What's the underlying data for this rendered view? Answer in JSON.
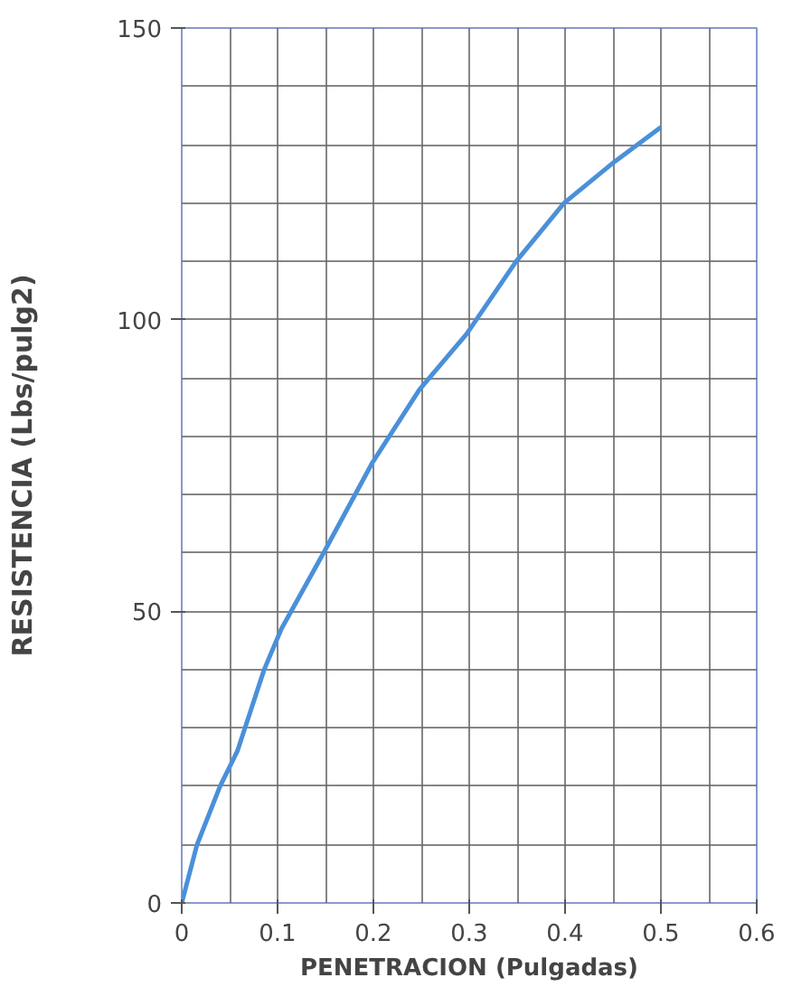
{
  "chart_data": {
    "type": "line",
    "xlabel": "PENETRACION (Pulgadas)",
    "ylabel": "RESISTENCIA (Lbs/pulg2)",
    "xlim": [
      0,
      0.6
    ],
    "ylim": [
      0,
      150
    ],
    "xticks": [
      0,
      0.1,
      0.2,
      0.3,
      0.4,
      0.5,
      0.6
    ],
    "yticks": [
      0,
      50,
      100,
      150
    ],
    "grid": true,
    "marker": "none",
    "line_style": "solid",
    "series": [
      {
        "color": "#4a90d9",
        "x": [
          0,
          0.016,
          0.04,
          0.058,
          0.086,
          0.104,
          0.148,
          0.199,
          0.248,
          0.297,
          0.349,
          0.399,
          0.451,
          0.5
        ],
        "values": [
          0,
          10,
          20,
          26,
          40,
          47,
          60,
          75.5,
          88,
          97.5,
          110,
          120,
          127,
          133
        ]
      }
    ]
  }
}
